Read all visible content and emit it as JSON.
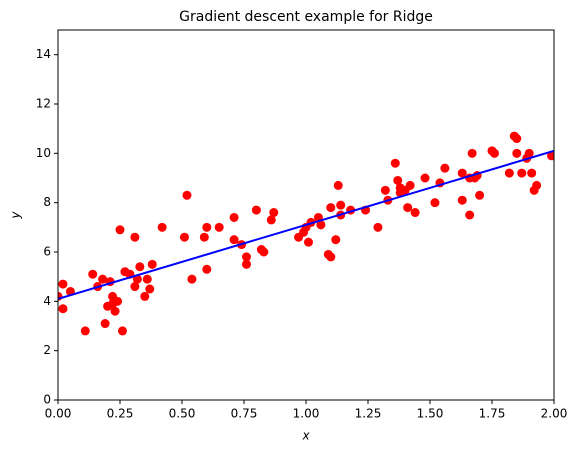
{
  "chart_data": {
    "type": "scatter",
    "title": "Gradient descent example for Ridge",
    "xlabel": "x",
    "ylabel": "y",
    "xlim": [
      0,
      2
    ],
    "ylim": [
      0,
      15
    ],
    "xticks": [
      {
        "value": 0,
        "label": "0.00"
      },
      {
        "value": 0.25,
        "label": "0.25"
      },
      {
        "value": 0.5,
        "label": "0.50"
      },
      {
        "value": 0.75,
        "label": "0.75"
      },
      {
        "value": 1,
        "label": "1.00"
      },
      {
        "value": 1.25,
        "label": "1.25"
      },
      {
        "value": 1.5,
        "label": "1.50"
      },
      {
        "value": 1.75,
        "label": "1.75"
      },
      {
        "value": 2,
        "label": "2.00"
      }
    ],
    "yticks": [
      0,
      2,
      4,
      6,
      8,
      10,
      12,
      14
    ],
    "series": [
      {
        "mark": "marker",
        "color": "#ff0000",
        "x": [
          0.0,
          0.02,
          0.02,
          0.05,
          0.11,
          0.14,
          0.16,
          0.18,
          0.19,
          0.2,
          0.21,
          0.22,
          0.22,
          0.23,
          0.24,
          0.25,
          0.26,
          0.27,
          0.29,
          0.31,
          0.31,
          0.32,
          0.33,
          0.35,
          0.36,
          0.37,
          0.38,
          0.42,
          0.51,
          0.52,
          0.54,
          0.59,
          0.6,
          0.6,
          0.65,
          0.71,
          0.71,
          0.74,
          0.76,
          0.76,
          0.8,
          0.82,
          0.83,
          0.86,
          0.87,
          0.97,
          0.99,
          1.0,
          1.01,
          1.02,
          1.05,
          1.06,
          1.09,
          1.1,
          1.1,
          1.12,
          1.13,
          1.14,
          1.14,
          1.18,
          1.24,
          1.29,
          1.32,
          1.33,
          1.36,
          1.37,
          1.38,
          1.38,
          1.4,
          1.41,
          1.42,
          1.44,
          1.48,
          1.52,
          1.54,
          1.56,
          1.63,
          1.63,
          1.66,
          1.66,
          1.67,
          1.68,
          1.69,
          1.7,
          1.75,
          1.76,
          1.82,
          1.84,
          1.85,
          1.85,
          1.87,
          1.89,
          1.9,
          1.91,
          1.92,
          1.93,
          1.99,
          2.0
        ],
        "values": [
          4.2,
          3.7,
          4.7,
          4.4,
          2.8,
          5.1,
          4.6,
          4.9,
          3.1,
          3.8,
          4.8,
          3.9,
          4.2,
          3.6,
          4.0,
          6.9,
          2.8,
          5.2,
          5.1,
          6.6,
          4.6,
          4.9,
          5.4,
          4.2,
          4.9,
          4.5,
          5.5,
          7.0,
          6.6,
          8.3,
          4.9,
          6.6,
          7.0,
          5.3,
          7.0,
          6.5,
          7.4,
          6.3,
          5.8,
          5.5,
          7.7,
          6.1,
          6.0,
          7.3,
          7.6,
          6.6,
          6.8,
          7.0,
          6.4,
          7.2,
          7.4,
          7.1,
          5.9,
          5.8,
          7.8,
          6.5,
          8.7,
          7.9,
          7.5,
          7.7,
          7.7,
          7.0,
          8.5,
          8.1,
          9.6,
          8.9,
          8.4,
          8.6,
          8.5,
          7.8,
          8.7,
          7.6,
          9.0,
          8.0,
          8.8,
          9.4,
          9.2,
          8.1,
          9.0,
          7.5,
          10.0,
          9.0,
          9.1,
          8.3,
          10.1,
          10.0,
          9.2,
          10.7,
          10.6,
          10.0,
          9.2,
          9.8,
          10.0,
          9.2,
          8.5,
          8.7,
          9.9,
          9.9
        ]
      },
      {
        "mark": "line",
        "color": "#0000ff",
        "x": [
          0,
          2
        ],
        "values": [
          4.1,
          10.1
        ]
      }
    ]
  }
}
